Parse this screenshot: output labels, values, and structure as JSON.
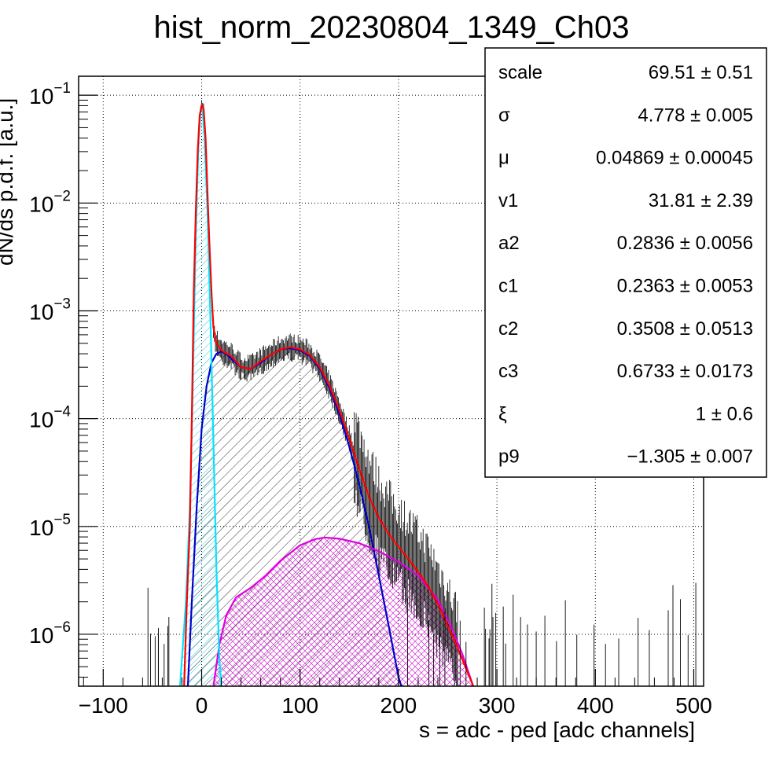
{
  "chart_data": {
    "type": "line",
    "title": "hist_norm_20230804_1349_Ch03",
    "xlabel": "s = adc - ped [adc channels]",
    "ylabel": "dN/ds p.d.f. [a.u.]",
    "xlim": [
      -125,
      510
    ],
    "ylim": [
      3.3e-07,
      0.15
    ],
    "y_scale": "log",
    "grid": true,
    "x_ticks": [
      {
        "value": -100,
        "label": "−100"
      },
      {
        "value": 0,
        "label": "0"
      },
      {
        "value": 100,
        "label": "100"
      },
      {
        "value": 200,
        "label": "200"
      },
      {
        "value": 300,
        "label": "300"
      },
      {
        "value": 400,
        "label": "400"
      },
      {
        "value": 500,
        "label": "500"
      }
    ],
    "y_ticks": [
      {
        "value": 1e-06,
        "base": "10",
        "exp": "−6"
      },
      {
        "value": 1e-05,
        "base": "10",
        "exp": "−5"
      },
      {
        "value": 0.0001,
        "base": "10",
        "exp": "−4"
      },
      {
        "value": 0.001,
        "base": "10",
        "exp": "−3"
      },
      {
        "value": 0.01,
        "base": "10",
        "exp": "−2"
      },
      {
        "value": 0.1,
        "base": "10",
        "exp": "−1"
      }
    ],
    "series": [
      {
        "color": "#ff0000",
        "fill": "none",
        "points": [
          [
            -18,
            3e-07
          ],
          [
            -15,
            2e-06
          ],
          [
            -12,
            1e-05
          ],
          [
            -10,
            0.0001
          ],
          [
            -8,
            0.0015
          ],
          [
            -6,
            0.008
          ],
          [
            -4,
            0.03
          ],
          [
            -2,
            0.065
          ],
          [
            0,
            0.08
          ],
          [
            2,
            0.075
          ],
          [
            4,
            0.04
          ],
          [
            6,
            0.012
          ],
          [
            8,
            0.004
          ],
          [
            10,
            0.0015
          ],
          [
            12,
            0.0007
          ],
          [
            15,
            0.0005
          ],
          [
            20,
            0.00043
          ],
          [
            30,
            0.00038
          ],
          [
            40,
            0.0003
          ],
          [
            50,
            0.00029
          ],
          [
            60,
            0.00034
          ],
          [
            70,
            0.00039
          ],
          [
            80,
            0.00044
          ],
          [
            90,
            0.00046
          ],
          [
            100,
            0.00044
          ],
          [
            110,
            0.00039
          ],
          [
            120,
            0.0003
          ],
          [
            130,
            0.0002
          ],
          [
            140,
            0.00012
          ],
          [
            150,
            6.5e-05
          ],
          [
            160,
            3.5e-05
          ],
          [
            170,
            1.9e-05
          ],
          [
            180,
            1.2e-05
          ],
          [
            190,
            8.5e-06
          ],
          [
            200,
            6.5e-06
          ],
          [
            210,
            5e-06
          ],
          [
            220,
            3.8e-06
          ],
          [
            230,
            2.8e-06
          ],
          [
            240,
            1.9e-06
          ],
          [
            250,
            1.2e-06
          ],
          [
            260,
            7.5e-07
          ],
          [
            270,
            4.5e-07
          ],
          [
            276,
            3.3e-07
          ]
        ]
      },
      {
        "color": "#00e5ff",
        "fill": "url(#hatch-cyan)",
        "points": [
          [
            -22,
            3.3e-07
          ],
          [
            -16,
            2e-06
          ],
          [
            -12,
            1.5e-05
          ],
          [
            -9,
            0.0002
          ],
          [
            -6,
            0.005
          ],
          [
            -3,
            0.04
          ],
          [
            -1,
            0.073
          ],
          [
            1,
            0.073
          ],
          [
            3,
            0.04
          ],
          [
            6,
            0.008
          ],
          [
            9,
            0.0008
          ],
          [
            12,
            6e-05
          ],
          [
            15,
            4e-06
          ],
          [
            18,
            6e-07
          ],
          [
            20,
            3.3e-07
          ]
        ]
      },
      {
        "color": "#0000cc",
        "fill": "url(#hatch-black)",
        "points": [
          [
            -14,
            3.3e-07
          ],
          [
            -10,
            2e-06
          ],
          [
            -5,
            1.5e-05
          ],
          [
            0,
            8e-05
          ],
          [
            5,
            0.0002
          ],
          [
            10,
            0.00033
          ],
          [
            15,
            0.0004
          ],
          [
            20,
            0.00042
          ],
          [
            25,
            0.0004
          ],
          [
            30,
            0.00036
          ],
          [
            40,
            0.0003
          ],
          [
            50,
            0.00029
          ],
          [
            60,
            0.00033
          ],
          [
            70,
            0.00039
          ],
          [
            80,
            0.00044
          ],
          [
            90,
            0.00045
          ],
          [
            100,
            0.00043
          ],
          [
            110,
            0.00038
          ],
          [
            120,
            0.00029
          ],
          [
            130,
            0.00019
          ],
          [
            140,
            0.00011
          ],
          [
            150,
            5.5e-05
          ],
          [
            160,
            2.5e-05
          ],
          [
            170,
            1e-05
          ],
          [
            180,
            3.5e-06
          ],
          [
            190,
            1.2e-06
          ],
          [
            200,
            4e-07
          ],
          [
            203,
            3.3e-07
          ]
        ]
      },
      {
        "color": "#e000e0",
        "fill": "url(#hatch-magenta)",
        "points": [
          [
            12,
            3.3e-07
          ],
          [
            18,
            8e-07
          ],
          [
            25,
            1.5e-06
          ],
          [
            35,
            2.2e-06
          ],
          [
            50,
            2.7e-06
          ],
          [
            65,
            3.5e-06
          ],
          [
            80,
            4.8e-06
          ],
          [
            100,
            6.7e-06
          ],
          [
            115,
            7.6e-06
          ],
          [
            125,
            7.9e-06
          ],
          [
            140,
            7.7e-06
          ],
          [
            160,
            7e-06
          ],
          [
            180,
            5.9e-06
          ],
          [
            200,
            4.7e-06
          ],
          [
            220,
            3.5e-06
          ],
          [
            240,
            2.1e-06
          ],
          [
            255,
            1.1e-06
          ],
          [
            265,
            6.5e-07
          ],
          [
            272,
            4.2e-07
          ],
          [
            276,
            3.3e-07
          ]
        ]
      }
    ],
    "stats": [
      {
        "name": "scale",
        "value": "69.51 ± 0.51"
      },
      {
        "name": "σ",
        "value": "4.778 ± 0.005"
      },
      {
        "name": "μ",
        "value": "0.04869 ± 0.00045"
      },
      {
        "name": "v1",
        "value": "31.81 ± 2.39"
      },
      {
        "name": "a2",
        "value": "0.2836 ± 0.0056"
      },
      {
        "name": "c1",
        "value": "0.2363 ± 0.0053"
      },
      {
        "name": "c2",
        "value": "0.3508 ± 0.0513"
      },
      {
        "name": "c3",
        "value": "0.6733 ± 0.0173"
      },
      {
        "name": "ξ",
        "value": "1 ± 0.6"
      },
      {
        "name": "p9",
        "value": "−1.305 ± 0.007"
      }
    ]
  }
}
